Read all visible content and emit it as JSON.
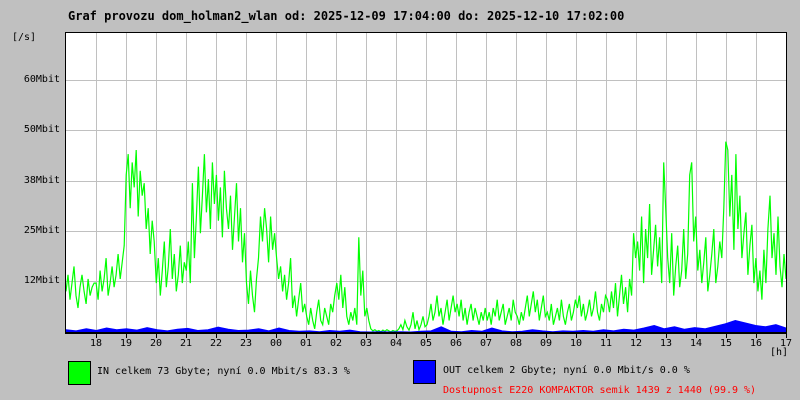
{
  "title": "Graf provozu dom_holman2_wlan od: 2025-12-09 17:04:00 do: 2025-12-10 17:02:00",
  "axes": {
    "y_unit": "[/s]",
    "x_unit": "[h]",
    "y_ticks": [
      "60Mbit",
      "50Mbit",
      "38Mbit",
      "25Mbit",
      "12Mbit"
    ],
    "x_ticks": [
      "18",
      "19",
      "20",
      "21",
      "22",
      "23",
      "00",
      "01",
      "02",
      "03",
      "04",
      "05",
      "06",
      "07",
      "08",
      "09",
      "10",
      "11",
      "12",
      "13",
      "14",
      "15",
      "16",
      "17"
    ]
  },
  "legend": {
    "in_label": "IN celkem 73 Gbyte; nyní   0.0 Mbit/s 83.3 %",
    "out_label": "OUT celkem 2 Gbyte; nyní   0.0 Mbit/s 0.0 %",
    "availability": "Dostupnost E220 KOMPAKTOR semik 1439 z 1440 (99.9 %)"
  },
  "colors": {
    "background": "#c0c0c0",
    "plot_background": "#ffffff",
    "grid": "#c0c0c0",
    "border": "#000000",
    "in_series": "#00ff00",
    "out_series": "#0000ff",
    "availability_text": "#ff0000",
    "title_text": "#000000"
  },
  "chart_data": {
    "type": "line",
    "title": "Graf provozu dom_holman2_wlan od: 2025-12-09 17:04:00 do: 2025-12-10 17:02:00",
    "xlabel": "[h]",
    "ylabel": "[/s]",
    "x_start": "17:04",
    "x_end": "17:02",
    "x_tick_hours": [
      "18",
      "19",
      "20",
      "21",
      "22",
      "23",
      "00",
      "01",
      "02",
      "03",
      "04",
      "05",
      "06",
      "07",
      "08",
      "09",
      "10",
      "11",
      "12",
      "13",
      "14",
      "15",
      "16",
      "17"
    ],
    "y_gridlines_mbit": [
      12.5,
      25,
      37.5,
      50,
      60.8
    ],
    "y_tick_labels": [
      "12Mbit",
      "25Mbit",
      "38Mbit",
      "50Mbit",
      "60Mbit"
    ],
    "ylim_mbit": [
      0,
      72
    ],
    "grid": true,
    "legend_position": "bottom",
    "series": [
      {
        "name": "IN",
        "unit": "Mbit/s",
        "color": "#00ff00",
        "sample_minutes": 4,
        "values": [
          10,
          14,
          8,
          12,
          16,
          9,
          6,
          11,
          14,
          10,
          7,
          13,
          9,
          11,
          12,
          12,
          8,
          15,
          10,
          13,
          18,
          9,
          12,
          16,
          11,
          14,
          19,
          13,
          17,
          21,
          38,
          43,
          30,
          41,
          35,
          44,
          28,
          39,
          33,
          36,
          25,
          30,
          19,
          27,
          22,
          12,
          18,
          9,
          15,
          22,
          11,
          16,
          25,
          13,
          19,
          10,
          14,
          21,
          12,
          17,
          15,
          22,
          12,
          36,
          18,
          28,
          40,
          24,
          33,
          43,
          29,
          37,
          25,
          41,
          31,
          38,
          27,
          35,
          23,
          39,
          30,
          25,
          33,
          20,
          28,
          36,
          22,
          30,
          17,
          24,
          12,
          7,
          15,
          9,
          5,
          13,
          18,
          28,
          22,
          30,
          25,
          17,
          28,
          20,
          24,
          18,
          13,
          16,
          10,
          14,
          8,
          12,
          18,
          6,
          9,
          4,
          8,
          12,
          5,
          7,
          4,
          2,
          6,
          3,
          1,
          5,
          8,
          3,
          2,
          6,
          4,
          2,
          7,
          5,
          9,
          12,
          8,
          14,
          6,
          11,
          4,
          2,
          5,
          3,
          6,
          2,
          23,
          9,
          15,
          4,
          6,
          3,
          1,
          0.5,
          0.8,
          0.4,
          0.6,
          0.3,
          0.7,
          0.4,
          0.8,
          0.5,
          0.3,
          0.6,
          0.4,
          0.5,
          1,
          2,
          0.8,
          3,
          1.5,
          0.7,
          2,
          5,
          1,
          3,
          0.8,
          2,
          4,
          1.5,
          2,
          4,
          7,
          3,
          5,
          9,
          4,
          6,
          2,
          5,
          8,
          3,
          6,
          9,
          5,
          7,
          4,
          8,
          3,
          6,
          2,
          5,
          7,
          3,
          6,
          4,
          2,
          5,
          3,
          6,
          3,
          5,
          2,
          6,
          4,
          8,
          3,
          5,
          7,
          2,
          4,
          6,
          3,
          8,
          5,
          4,
          2,
          5,
          3,
          6,
          9,
          4,
          7,
          10,
          5,
          8,
          3,
          6,
          9,
          4,
          5,
          3,
          7,
          2,
          4,
          6,
          3,
          8,
          4,
          2,
          5,
          7,
          3,
          5,
          8,
          6,
          9,
          4,
          7,
          3,
          5,
          8,
          4,
          6,
          10,
          5,
          3,
          7,
          5,
          9,
          8,
          5,
          10,
          6,
          12,
          4,
          9,
          14,
          7,
          11,
          5,
          13,
          9,
          24,
          18,
          22,
          15,
          28,
          12,
          25,
          18,
          31,
          14,
          20,
          26,
          16,
          23,
          12,
          41,
          30,
          18,
          12,
          24,
          9,
          16,
          21,
          11,
          15,
          25,
          13,
          19,
          38,
          41,
          22,
          28,
          15,
          20,
          12,
          17,
          23,
          10,
          14,
          19,
          25,
          12,
          16,
          22,
          18,
          30,
          46,
          44,
          28,
          38,
          20,
          43,
          25,
          33,
          18,
          24,
          29,
          14,
          21,
          26,
          12,
          18,
          10,
          15,
          8,
          20,
          12,
          25,
          33,
          18,
          24,
          14,
          28,
          16,
          11,
          19,
          13
        ]
      },
      {
        "name": "OUT",
        "unit": "Mbit/s",
        "color": "#0000ff",
        "sample_minutes": 20,
        "values": [
          0.8,
          0.5,
          1.0,
          0.6,
          1.2,
          0.8,
          1.0,
          0.7,
          1.3,
          0.8,
          0.5,
          0.9,
          1.1,
          0.6,
          0.8,
          1.4,
          0.9,
          0.6,
          0.7,
          1.0,
          0.5,
          1.2,
          0.6,
          0.4,
          0.5,
          0.3,
          0.6,
          0.4,
          0.7,
          0.3,
          0.2,
          0.3,
          0.2,
          0.3,
          0.2,
          0.4,
          0.5,
          1.5,
          0.4,
          0.3,
          0.6,
          0.4,
          1.2,
          0.5,
          0.3,
          0.4,
          0.8,
          0.5,
          0.3,
          0.5,
          0.4,
          0.6,
          0.4,
          0.8,
          0.5,
          0.9,
          0.7,
          1.2,
          1.8,
          1.0,
          1.5,
          0.9,
          1.3,
          1.0,
          1.6,
          2.2,
          3.0,
          2.4,
          1.8,
          1.5,
          2.0,
          1.2
        ]
      }
    ],
    "summary": {
      "in_total": "73 Gbyte",
      "in_now": "0.0 Mbit/s",
      "in_percent": "83.3 %",
      "out_total": "2 Gbyte",
      "out_now": "0.0 Mbit/s",
      "out_percent": "0.0 %",
      "availability": "1439 z 1440 (99.9 %)"
    }
  }
}
